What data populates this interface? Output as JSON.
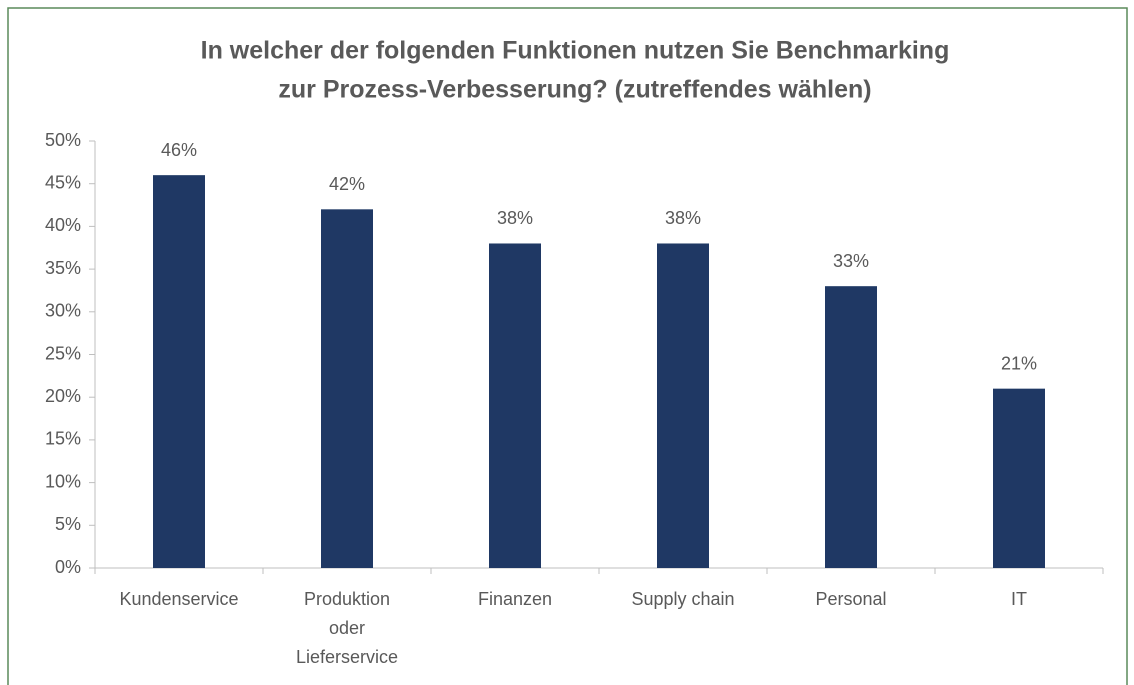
{
  "chart_data": {
    "type": "bar",
    "title": [
      "In welcher der folgenden Funktionen nutzen Sie Benchmarking",
      "zur Prozess-Verbesserung? (zutreffendes wählen)"
    ],
    "categories": [
      "Kundenservice",
      "Produktion oder Lieferservice",
      "Finanzen",
      "Supply chain",
      "Personal",
      "IT"
    ],
    "values": [
      46,
      42,
      38,
      38,
      33,
      21
    ],
    "value_labels": [
      "46%",
      "42%",
      "38%",
      "38%",
      "33%",
      "21%"
    ],
    "color": "#1f3864",
    "ylim": [
      0,
      50
    ],
    "yticks": [
      {
        "value": 0,
        "label": "0%"
      },
      {
        "value": 5,
        "label": "5%"
      },
      {
        "value": 10,
        "label": "10%"
      },
      {
        "value": 15,
        "label": "15%"
      },
      {
        "value": 20,
        "label": "20%"
      },
      {
        "value": 25,
        "label": "25%"
      },
      {
        "value": 30,
        "label": "30%"
      },
      {
        "value": 35,
        "label": "35%"
      },
      {
        "value": 40,
        "label": "40%"
      },
      {
        "value": 45,
        "label": "45%"
      },
      {
        "value": 50,
        "label": "50%"
      }
    ],
    "grid": false
  }
}
